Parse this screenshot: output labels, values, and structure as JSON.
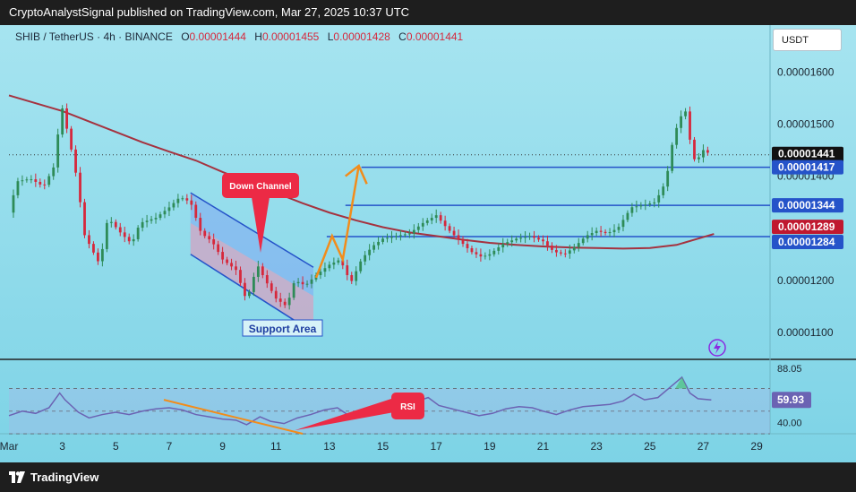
{
  "header": {
    "publisher_line": "CryptoAnalystSignal published on TradingView.com, Mar 27, 2025 10:37 UTC"
  },
  "legend": {
    "symbol": "SHIB / TetherUS · 4h · BINANCE",
    "open_label": "O",
    "open": "0.00001444",
    "high_label": "H",
    "high": "0.00001455",
    "low_label": "L",
    "low": "0.00001428",
    "close_label": "C",
    "close": "0.00001441"
  },
  "currency_button": "USDT",
  "footer": {
    "brand": "TradingView"
  },
  "colors": {
    "background": "#8fdaea",
    "bullish": "#2e8b57",
    "bearish": "#d6283c",
    "ma": "#a5323f",
    "level_line": "#2553c9",
    "annotation_orange": "#f28c1b",
    "rsi_line": "#6b63b3"
  },
  "chart_data": {
    "type": "candlestick",
    "symbol": "SHIB/USDT",
    "timeframe": "4h",
    "price_axis": {
      "ylim": [
        1.05e-05,
        1.69e-05
      ],
      "ticks": [
        "0.00001600",
        "0.00001500",
        "0.00001400",
        "0.00001300",
        "0.00001200",
        "0.00001100"
      ]
    },
    "date_axis": {
      "start_day": 1,
      "end_day": 29.5,
      "ticks": [
        {
          "day": 1,
          "label": "Mar"
        },
        {
          "day": 3,
          "label": "3"
        },
        {
          "day": 5,
          "label": "5"
        },
        {
          "day": 7,
          "label": "7"
        },
        {
          "day": 9,
          "label": "9"
        },
        {
          "day": 11,
          "label": "11"
        },
        {
          "day": 13,
          "label": "13"
        },
        {
          "day": 15,
          "label": "15"
        },
        {
          "day": 17,
          "label": "17"
        },
        {
          "day": 19,
          "label": "19"
        },
        {
          "day": 21,
          "label": "21"
        },
        {
          "day": 23,
          "label": "23"
        },
        {
          "day": 25,
          "label": "25"
        },
        {
          "day": 27,
          "label": "27"
        },
        {
          "day": 29,
          "label": "29"
        }
      ]
    },
    "price_labels": [
      {
        "price": 1.441e-05,
        "text": "0.00001441",
        "sub": "01:22:03",
        "style": "last"
      },
      {
        "price": 1.417e-05,
        "text": "0.00001417",
        "style": "level"
      },
      {
        "price": 1.344e-05,
        "text": "0.00001344",
        "style": "level"
      },
      {
        "price": 1.289e-05,
        "text": "0.00001289",
        "style": "ma"
      },
      {
        "price": 1.284e-05,
        "text": "0.00001284",
        "style": "level"
      }
    ],
    "horizontal_levels": [
      {
        "price": 1.417e-05,
        "from_day": 14.2
      },
      {
        "price": 1.344e-05,
        "from_day": 13.6
      },
      {
        "price": 1.284e-05,
        "from_day": 12.9
      }
    ],
    "last_price": 1.441e-05,
    "moving_average": [
      [
        1,
        15.55
      ],
      [
        2,
        15.4
      ],
      [
        3,
        15.25
      ],
      [
        4,
        15.05
      ],
      [
        5,
        14.85
      ],
      [
        6,
        14.65
      ],
      [
        7,
        14.47
      ],
      [
        8,
        14.3
      ],
      [
        9,
        14.08
      ],
      [
        10,
        13.88
      ],
      [
        11,
        13.68
      ],
      [
        12,
        13.48
      ],
      [
        13,
        13.3
      ],
      [
        14,
        13.15
      ],
      [
        15,
        13.02
      ],
      [
        16,
        12.92
      ],
      [
        17,
        12.85
      ],
      [
        18,
        12.78
      ],
      [
        19,
        12.72
      ],
      [
        20,
        12.68
      ],
      [
        21,
        12.65
      ],
      [
        22,
        12.63
      ],
      [
        23,
        12.62
      ],
      [
        24,
        12.61
      ],
      [
        25,
        12.62
      ],
      [
        26,
        12.68
      ],
      [
        26.8,
        12.8
      ],
      [
        27.4,
        12.89
      ]
    ],
    "price_path": [
      [
        1,
        13.3
      ],
      [
        1.3,
        13.9
      ],
      [
        1.8,
        13.95
      ],
      [
        2.3,
        13.8
      ],
      [
        2.7,
        14.2
      ],
      [
        2.9,
        15.1
      ],
      [
        3,
        15.3
      ],
      [
        3.3,
        14.6
      ],
      [
        3.6,
        13.8
      ],
      [
        3.8,
        12.9
      ],
      [
        4.2,
        12.5
      ],
      [
        4.4,
        12.3
      ],
      [
        4.7,
        13.2
      ],
      [
        5.2,
        12.9
      ],
      [
        5.6,
        12.7
      ],
      [
        5.9,
        13.1
      ],
      [
        6.5,
        13.2
      ],
      [
        7,
        13.4
      ],
      [
        7.4,
        13.6
      ],
      [
        7.8,
        13.5
      ],
      [
        8.2,
        12.9
      ],
      [
        8.6,
        12.75
      ],
      [
        9,
        12.4
      ],
      [
        9.5,
        12.2
      ],
      [
        9.9,
        11.6
      ],
      [
        10.3,
        12.3
      ],
      [
        10.6,
        12.0
      ],
      [
        11,
        11.65
      ],
      [
        11.4,
        11.5
      ],
      [
        11.7,
        12.0
      ],
      [
        12.1,
        11.9
      ],
      [
        12.5,
        12.1
      ],
      [
        13,
        12.3
      ],
      [
        13.4,
        12.4
      ],
      [
        13.8,
        11.95
      ],
      [
        14.2,
        12.4
      ],
      [
        14.6,
        12.65
      ],
      [
        15,
        12.8
      ],
      [
        15.5,
        12.85
      ],
      [
        16,
        12.9
      ],
      [
        16.5,
        13.1
      ],
      [
        17,
        13.25
      ],
      [
        17.4,
        13.0
      ],
      [
        17.8,
        12.8
      ],
      [
        18.3,
        12.55
      ],
      [
        18.7,
        12.45
      ],
      [
        19,
        12.5
      ],
      [
        19.5,
        12.7
      ],
      [
        20,
        12.8
      ],
      [
        20.5,
        12.85
      ],
      [
        21,
        12.75
      ],
      [
        21.4,
        12.55
      ],
      [
        21.8,
        12.5
      ],
      [
        22.2,
        12.65
      ],
      [
        22.6,
        12.85
      ],
      [
        23,
        12.95
      ],
      [
        23.4,
        12.9
      ],
      [
        23.8,
        13.0
      ],
      [
        24.3,
        13.4
      ],
      [
        24.8,
        13.45
      ],
      [
        25.2,
        13.5
      ],
      [
        25.6,
        13.9
      ],
      [
        25.9,
        14.8
      ],
      [
        26.1,
        15.05
      ],
      [
        26.3,
        15.35
      ],
      [
        26.5,
        14.7
      ],
      [
        26.7,
        14.25
      ],
      [
        27,
        14.5
      ],
      [
        27.3,
        14.41
      ]
    ],
    "price_path_unit": "1e-6 USDT",
    "rsi": {
      "ylim": [
        30,
        95
      ],
      "ticks": [
        "88.05",
        "62.44",
        "40.00"
      ],
      "current": "59.93",
      "zone_lines": [
        70,
        50,
        30
      ],
      "values": [
        [
          1,
          46
        ],
        [
          1.5,
          50
        ],
        [
          2,
          48
        ],
        [
          2.5,
          53
        ],
        [
          2.9,
          66
        ],
        [
          3.1,
          60
        ],
        [
          3.6,
          49
        ],
        [
          4,
          44
        ],
        [
          4.5,
          47
        ],
        [
          5,
          49
        ],
        [
          5.5,
          47
        ],
        [
          6,
          50
        ],
        [
          6.5,
          52
        ],
        [
          7,
          53
        ],
        [
          7.5,
          51
        ],
        [
          8,
          47
        ],
        [
          8.5,
          45
        ],
        [
          9,
          43
        ],
        [
          9.5,
          42
        ],
        [
          9.9,
          38
        ],
        [
          10.4,
          45
        ],
        [
          10.8,
          41
        ],
        [
          11.3,
          39
        ],
        [
          11.8,
          44
        ],
        [
          12.3,
          47
        ],
        [
          12.8,
          51
        ],
        [
          13.3,
          53
        ],
        [
          13.8,
          45
        ],
        [
          14.3,
          51
        ],
        [
          14.8,
          54
        ],
        [
          15.3,
          55
        ],
        [
          15.8,
          57
        ],
        [
          16.3,
          59
        ],
        [
          16.7,
          62
        ],
        [
          17.1,
          55
        ],
        [
          17.6,
          52
        ],
        [
          18.1,
          49
        ],
        [
          18.6,
          46
        ],
        [
          19.1,
          48
        ],
        [
          19.6,
          52
        ],
        [
          20.1,
          54
        ],
        [
          20.6,
          53
        ],
        [
          21,
          50
        ],
        [
          21.5,
          47
        ],
        [
          22,
          51
        ],
        [
          22.5,
          54
        ],
        [
          23,
          55
        ],
        [
          23.5,
          56
        ],
        [
          24,
          59
        ],
        [
          24.4,
          65
        ],
        [
          24.8,
          60
        ],
        [
          25.3,
          62
        ],
        [
          25.8,
          72
        ],
        [
          26.2,
          80
        ],
        [
          26.5,
          66
        ],
        [
          26.8,
          61
        ],
        [
          27.3,
          59.93
        ]
      ]
    },
    "annotations": [
      {
        "type": "label",
        "text": "Down Channel"
      },
      {
        "type": "label",
        "text": "Support Area"
      },
      {
        "type": "label",
        "text": "RSI"
      },
      {
        "type": "channel",
        "direction": "down"
      },
      {
        "type": "arrow",
        "color": "orange",
        "direction": "up"
      },
      {
        "type": "trendline",
        "pane": "rsi",
        "direction": "down"
      }
    ]
  }
}
